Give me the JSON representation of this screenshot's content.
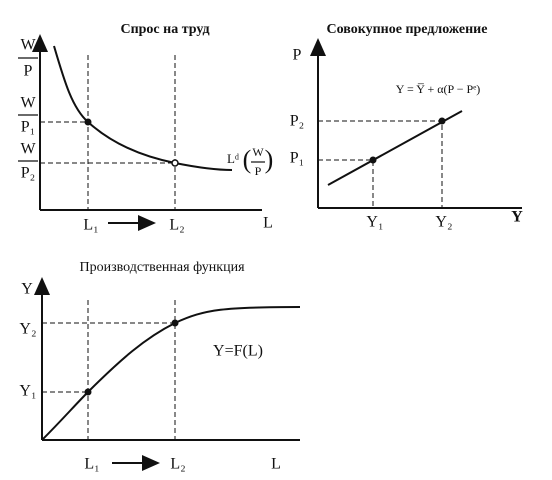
{
  "panels": [
    {
      "title": "Спрос на труд",
      "y_axis": {
        "num": "W",
        "den": "P"
      },
      "y_ticks": [
        {
          "num": "W",
          "den": "P₁"
        },
        {
          "num": "W",
          "den": "P₂"
        }
      ],
      "x_ticks": [
        "L₁",
        "L₂"
      ],
      "x_axis": "L",
      "curve_label": {
        "main": "Lᵈ",
        "num": "W",
        "den": "P"
      }
    },
    {
      "title": "Совокупное предложение",
      "y_axis": "P",
      "y_ticks": [
        "P₂",
        "P₁"
      ],
      "x_ticks": [
        "Y₁",
        "Y₂"
      ],
      "x_axis": "Y",
      "curve_label": "Y = Y̅ + α(P − Pᵉ)"
    },
    {
      "title": "Производственная функция",
      "y_axis": "Y",
      "y_ticks": [
        "Y₂",
        "Y₁"
      ],
      "x_ticks": [
        "L₁",
        "L₂"
      ],
      "x_axis": "L",
      "curve_label": "Y=F(L)"
    }
  ]
}
